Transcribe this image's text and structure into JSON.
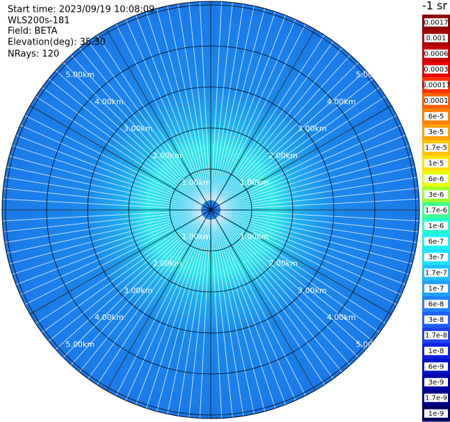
{
  "header": {
    "lines": [
      "Start time: 2023/09/19 10:08:09",
      "WLS200s-181",
      "Field: BETA",
      "Elevation(deg): 35.30",
      "NRays: 120"
    ]
  },
  "rings": {
    "labels": [
      "1.00km",
      "2.00km",
      "3.00km",
      "4.00km",
      "5.00km"
    ]
  },
  "colorbar": {
    "unit": "-1 sr",
    "labels": [
      "0.0017",
      "0.001",
      "0.0006",
      "0.0003",
      "0.00017",
      "0.0001",
      "6e-5",
      "3e-5",
      "1.7e-5",
      "1e-5",
      "6e-6",
      "3e-6",
      "1.7e-6",
      "1e-6",
      "6e-7",
      "3e-7",
      "1.7e-7",
      "1e-7",
      "6e-8",
      "3e-8",
      "1.7e-8",
      "1e-8",
      "6e-9",
      "3e-9",
      "1.7e-9",
      "1e-9"
    ],
    "colors": [
      "#8b0000",
      "#a80000",
      "#c80000",
      "#e80000",
      "#ff3000",
      "#ff6000",
      "#ff8000",
      "#ffa000",
      "#ffc000",
      "#ffe000",
      "#e8ff00",
      "#a0ff30",
      "#40ff90",
      "#20ffd0",
      "#20f0f0",
      "#20e0ff",
      "#20c0ff",
      "#20a0ff",
      "#2080ff",
      "#2060ff",
      "#2040f0",
      "#1020e0",
      "#0010c8",
      "#0000a8",
      "#000088",
      "#000060"
    ]
  }
}
